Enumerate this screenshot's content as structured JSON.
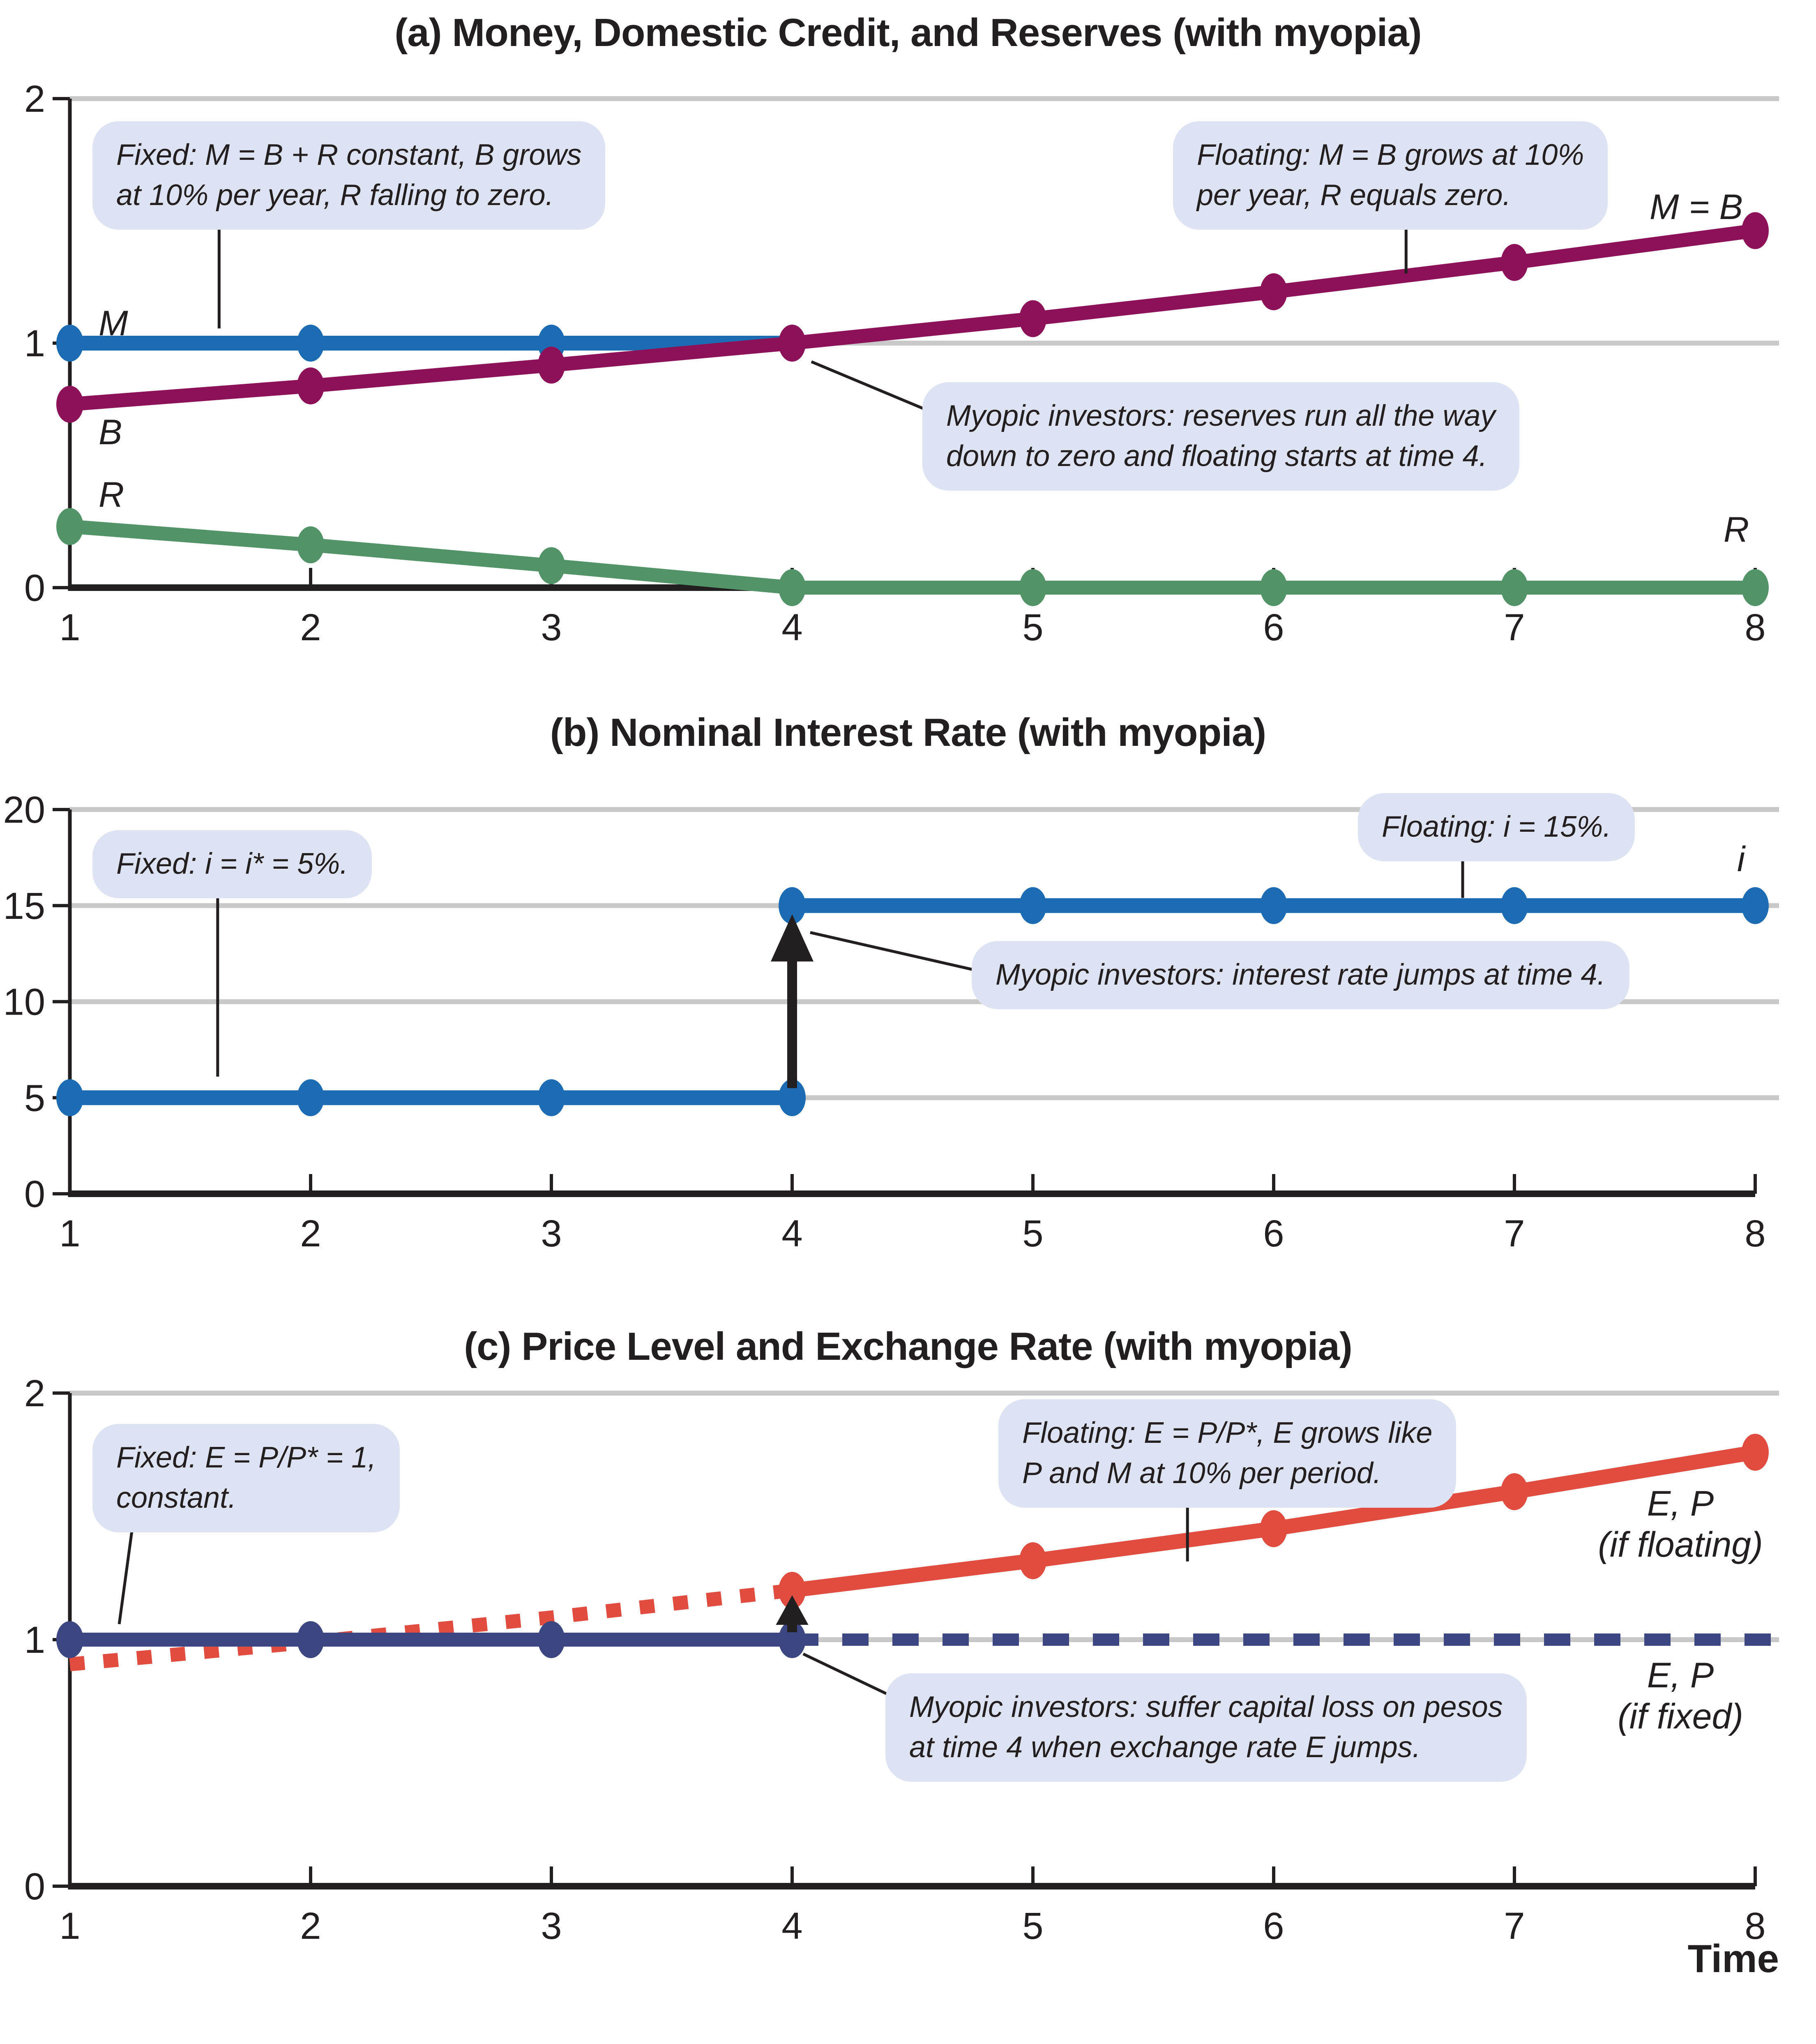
{
  "labels": {
    "time_axis": "Time"
  },
  "colors": {
    "money_blue": "#1b6cb2",
    "credit_maroon": "#8d1158",
    "reserves_green": "#529467",
    "exchange_red": "#e04d40",
    "fixed_navy": "#3c4781",
    "callout_bg": "#dde3f2",
    "gridline_gray": "#c8c8c8",
    "ink": "#231f20"
  },
  "chart_data": [
    {
      "id": "a",
      "type": "line",
      "title": "(a) Money, Domestic Credit, and Reserves (with myopia)",
      "xlabel": "Time",
      "ylabel": "",
      "xlim": [
        1,
        8
      ],
      "ylim": [
        0,
        2
      ],
      "x_ticks": [
        1,
        2,
        3,
        4,
        5,
        6,
        7,
        8
      ],
      "y_ticks": [
        0,
        1,
        2
      ],
      "grid_y": [
        1,
        2
      ],
      "legend_position": "none",
      "series": [
        {
          "name": "money-M",
          "label": "M",
          "color": "#1b6cb2",
          "width": 36,
          "markers": true,
          "x": [
            1,
            2,
            3,
            4
          ],
          "y": [
            1,
            1,
            1,
            1
          ]
        },
        {
          "name": "domestic-credit-B",
          "label": "B",
          "label_right": "M = B",
          "color": "#8d1158",
          "width": 34,
          "markers": true,
          "x": [
            1,
            2,
            3,
            4,
            5,
            6,
            7,
            8
          ],
          "y": [
            0.75,
            0.825,
            0.91,
            1.0,
            1.1,
            1.21,
            1.33,
            1.46
          ]
        },
        {
          "name": "reserves-R",
          "label": "R",
          "label_right": "R",
          "color": "#529467",
          "width": 34,
          "markers": true,
          "x": [
            1,
            2,
            3,
            4,
            5,
            6,
            7,
            8
          ],
          "y": [
            0.25,
            0.175,
            0.09,
            0,
            0,
            0,
            0,
            0
          ]
        }
      ],
      "annotations": {
        "callouts": [
          {
            "text": "Fixed: M = B + R constant, B grows\nat 10% per year, R falling to zero."
          },
          {
            "text": "Floating: M = B grows at 10%\nper year, R equals zero."
          },
          {
            "text": "Myopic investors: reserves run all the way\ndown to zero and floating starts at time 4."
          }
        ],
        "leader_lines": [
          {
            "x1": 1.62,
            "y1": 1.47,
            "x2": 1.62,
            "y2": 1.06
          },
          {
            "x1": 6.55,
            "y1": 1.47,
            "x2": 6.55,
            "y2": 1.285
          },
          {
            "x1": 4.08,
            "y1": 0.924,
            "x2": 4.575,
            "y2": 0.72
          }
        ],
        "arrows": []
      }
    },
    {
      "id": "b",
      "type": "line",
      "title": "(b) Nominal Interest Rate (with myopia)",
      "xlabel": "Time",
      "ylabel": "",
      "xlim": [
        1,
        8
      ],
      "ylim": [
        0,
        20
      ],
      "x_ticks": [
        1,
        2,
        3,
        4,
        5,
        6,
        7,
        8
      ],
      "y_ticks": [
        0,
        5,
        10,
        15,
        20
      ],
      "grid_y": [
        5,
        10,
        15,
        20
      ],
      "legend_position": "none",
      "series": [
        {
          "name": "interest-rate-fixed",
          "color": "#1b6cb2",
          "width": 36,
          "markers": true,
          "x": [
            1,
            2,
            3,
            4
          ],
          "y": [
            5,
            5,
            5,
            5
          ]
        },
        {
          "name": "interest-rate-floating",
          "label_right": "i",
          "color": "#1b6cb2",
          "width": 36,
          "markers": true,
          "x": [
            4,
            5,
            6,
            7,
            8
          ],
          "y": [
            15,
            15,
            15,
            15,
            15
          ]
        }
      ],
      "annotations": {
        "callouts": [
          {
            "text": "Fixed: i = i* = 5%."
          },
          {
            "text": "Floating: i = 15%."
          },
          {
            "text": "Myopic investors: interest rate jumps at time 4."
          }
        ],
        "leader_lines": [
          {
            "x1": 1.614,
            "y1": 15.5,
            "x2": 1.614,
            "y2": 6.1
          },
          {
            "x1": 6.785,
            "y1": 17.45,
            "x2": 6.785,
            "y2": 15.4
          },
          {
            "x1": 4.075,
            "y1": 13.6,
            "x2": 4.775,
            "y2": 11.6
          }
        ],
        "arrows": [
          {
            "x": 4,
            "v_from": 5.5,
            "v_tip": 14.55
          }
        ]
      }
    },
    {
      "id": "c",
      "type": "line",
      "title": "(c) Price Level and Exchange Rate (with myopia)",
      "xlabel": "Time",
      "ylabel": "",
      "xlim": [
        1,
        8
      ],
      "ylim": [
        0,
        2
      ],
      "x_ticks": [
        1,
        2,
        3,
        4,
        5,
        6,
        7,
        8
      ],
      "y_ticks": [
        0,
        1,
        2
      ],
      "grid_y": [
        1,
        2
      ],
      "legend_position": "none",
      "series": [
        {
          "name": "shadow-exchange-rate-dotted",
          "color": "#e04d40",
          "width": 34,
          "dash": "36 46",
          "markers": false,
          "x": [
            1,
            2,
            3,
            4
          ],
          "y": [
            0.9,
            0.99,
            1.09,
            1.2
          ]
        },
        {
          "name": "exchange-rate-fixed-solid",
          "color": "#3c4781",
          "width": 34,
          "markers": true,
          "x": [
            1,
            2,
            3,
            4
          ],
          "y": [
            1,
            1,
            1,
            1
          ]
        },
        {
          "name": "exchange-rate-fixed-dashed",
          "color": "#3c4781",
          "width": 30,
          "dash": "64 58",
          "markers": false,
          "x": [
            4,
            8.1
          ],
          "y": [
            1,
            1
          ]
        },
        {
          "name": "exchange-rate-floating-solid",
          "color": "#e04d40",
          "width": 36,
          "markers": true,
          "x": [
            4,
            5,
            6,
            7,
            8
          ],
          "y": [
            1.2,
            1.32,
            1.45,
            1.6,
            1.76
          ]
        }
      ],
      "labels_right": [
        {
          "text": "E, P\n(if floating)"
        },
        {
          "text": "E, P\n(if fixed)"
        }
      ],
      "annotations": {
        "callouts": [
          {
            "text": "Fixed: E = P/P* = 1,\nconstant."
          },
          {
            "text": "Floating: E = P/P*, E grows like\nP and M at 10% per period."
          },
          {
            "text": "Myopic investors: suffer capital loss on pesos\nat time 4 when exchange rate E jumps."
          }
        ],
        "leader_lines": [
          {
            "x1": 1.259,
            "y1": 1.45,
            "x2": 1.205,
            "y2": 1.063
          },
          {
            "x1": 5.642,
            "y1": 1.55,
            "x2": 5.642,
            "y2": 1.317
          },
          {
            "x1": 4.046,
            "y1": 0.942,
            "x2": 4.421,
            "y2": 0.767
          }
        ],
        "arrows": [
          {
            "x": 4,
            "v_from": 1.03,
            "v_tip": 1.18
          }
        ]
      }
    }
  ]
}
